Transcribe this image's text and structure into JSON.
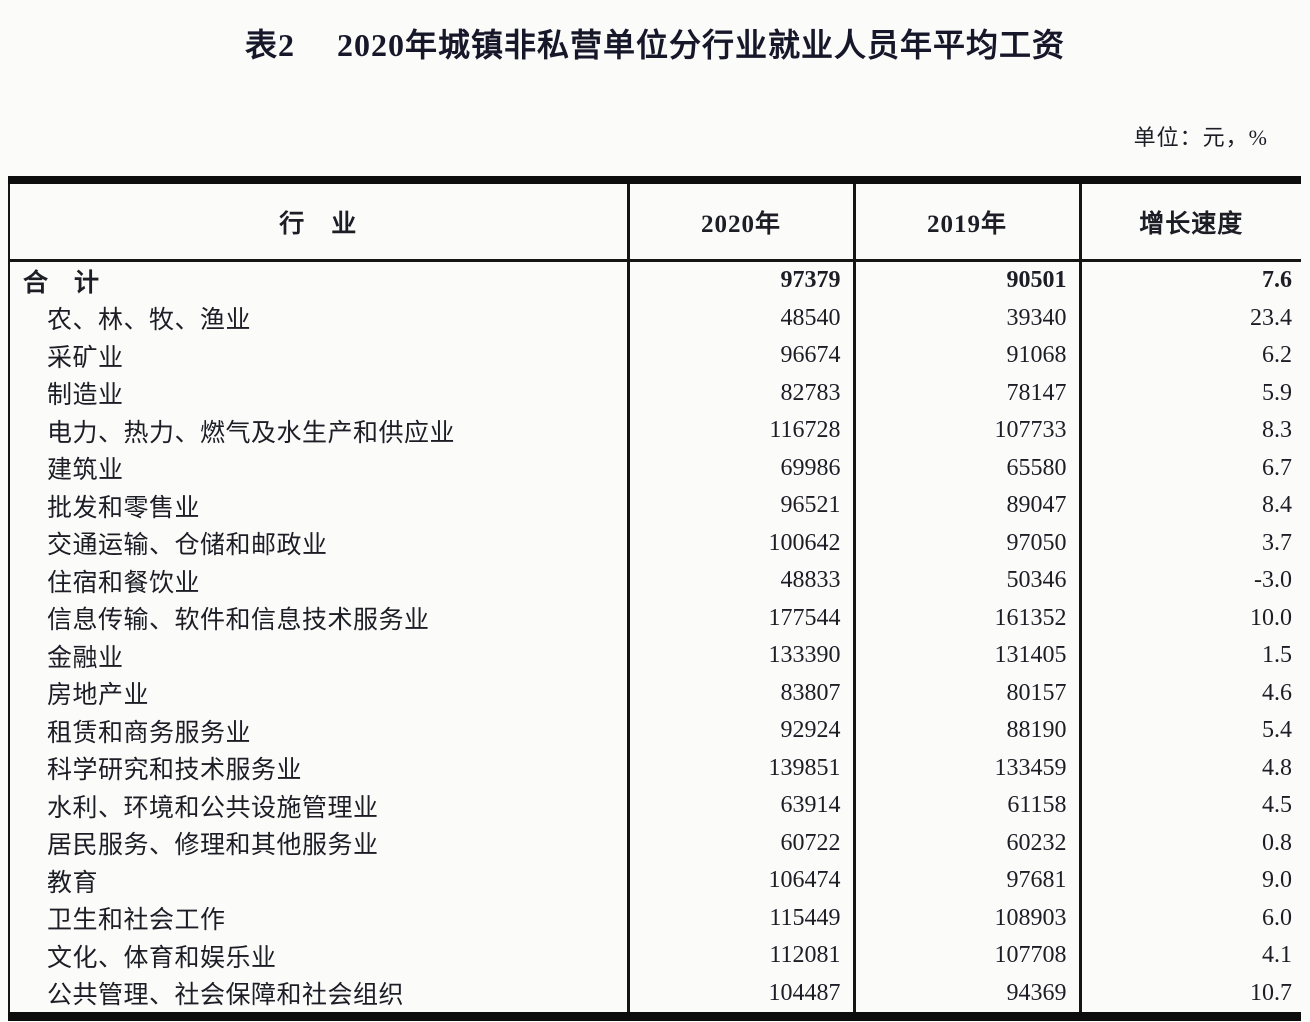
{
  "page": {
    "title": "表2　 2020年城镇非私营单位分行业就业人员年平均工资",
    "unit_note": "单位：元，%"
  },
  "table": {
    "columns": [
      "行　业",
      "2020年",
      "2019年",
      "增长速度"
    ],
    "rows": [
      {
        "industry": "合　计",
        "y2020": "97379",
        "y2019": "90501",
        "growth": "7.6",
        "bold": true
      },
      {
        "industry": "农、林、牧、渔业",
        "y2020": "48540",
        "y2019": "39340",
        "growth": "23.4"
      },
      {
        "industry": "采矿业",
        "y2020": "96674",
        "y2019": "91068",
        "growth": "6.2"
      },
      {
        "industry": "制造业",
        "y2020": "82783",
        "y2019": "78147",
        "growth": "5.9"
      },
      {
        "industry": "电力、热力、燃气及水生产和供应业",
        "y2020": "116728",
        "y2019": "107733",
        "growth": "8.3"
      },
      {
        "industry": "建筑业",
        "y2020": "69986",
        "y2019": "65580",
        "growth": "6.7"
      },
      {
        "industry": "批发和零售业",
        "y2020": "96521",
        "y2019": "89047",
        "growth": "8.4"
      },
      {
        "industry": "交通运输、仓储和邮政业",
        "y2020": "100642",
        "y2019": "97050",
        "growth": "3.7"
      },
      {
        "industry": "住宿和餐饮业",
        "y2020": "48833",
        "y2019": "50346",
        "growth": "-3.0"
      },
      {
        "industry": "信息传输、软件和信息技术服务业",
        "y2020": "177544",
        "y2019": "161352",
        "growth": "10.0"
      },
      {
        "industry": "金融业",
        "y2020": "133390",
        "y2019": "131405",
        "growth": "1.5"
      },
      {
        "industry": "房地产业",
        "y2020": "83807",
        "y2019": "80157",
        "growth": "4.6"
      },
      {
        "industry": "租赁和商务服务业",
        "y2020": "92924",
        "y2019": "88190",
        "growth": "5.4"
      },
      {
        "industry": "科学研究和技术服务业",
        "y2020": "139851",
        "y2019": "133459",
        "growth": "4.8"
      },
      {
        "industry": "水利、环境和公共设施管理业",
        "y2020": "63914",
        "y2019": "61158",
        "growth": "4.5"
      },
      {
        "industry": "居民服务、修理和其他服务业",
        "y2020": "60722",
        "y2019": "60232",
        "growth": "0.8"
      },
      {
        "industry": "教育",
        "y2020": "106474",
        "y2019": "97681",
        "growth": "9.0"
      },
      {
        "industry": "卫生和社会工作",
        "y2020": "115449",
        "y2019": "108903",
        "growth": "6.0"
      },
      {
        "industry": "文化、体育和娱乐业",
        "y2020": "112081",
        "y2019": "107708",
        "growth": "4.1"
      },
      {
        "industry": "公共管理、社会保障和社会组织",
        "y2020": "104487",
        "y2019": "94369",
        "growth": "10.7"
      }
    ]
  }
}
